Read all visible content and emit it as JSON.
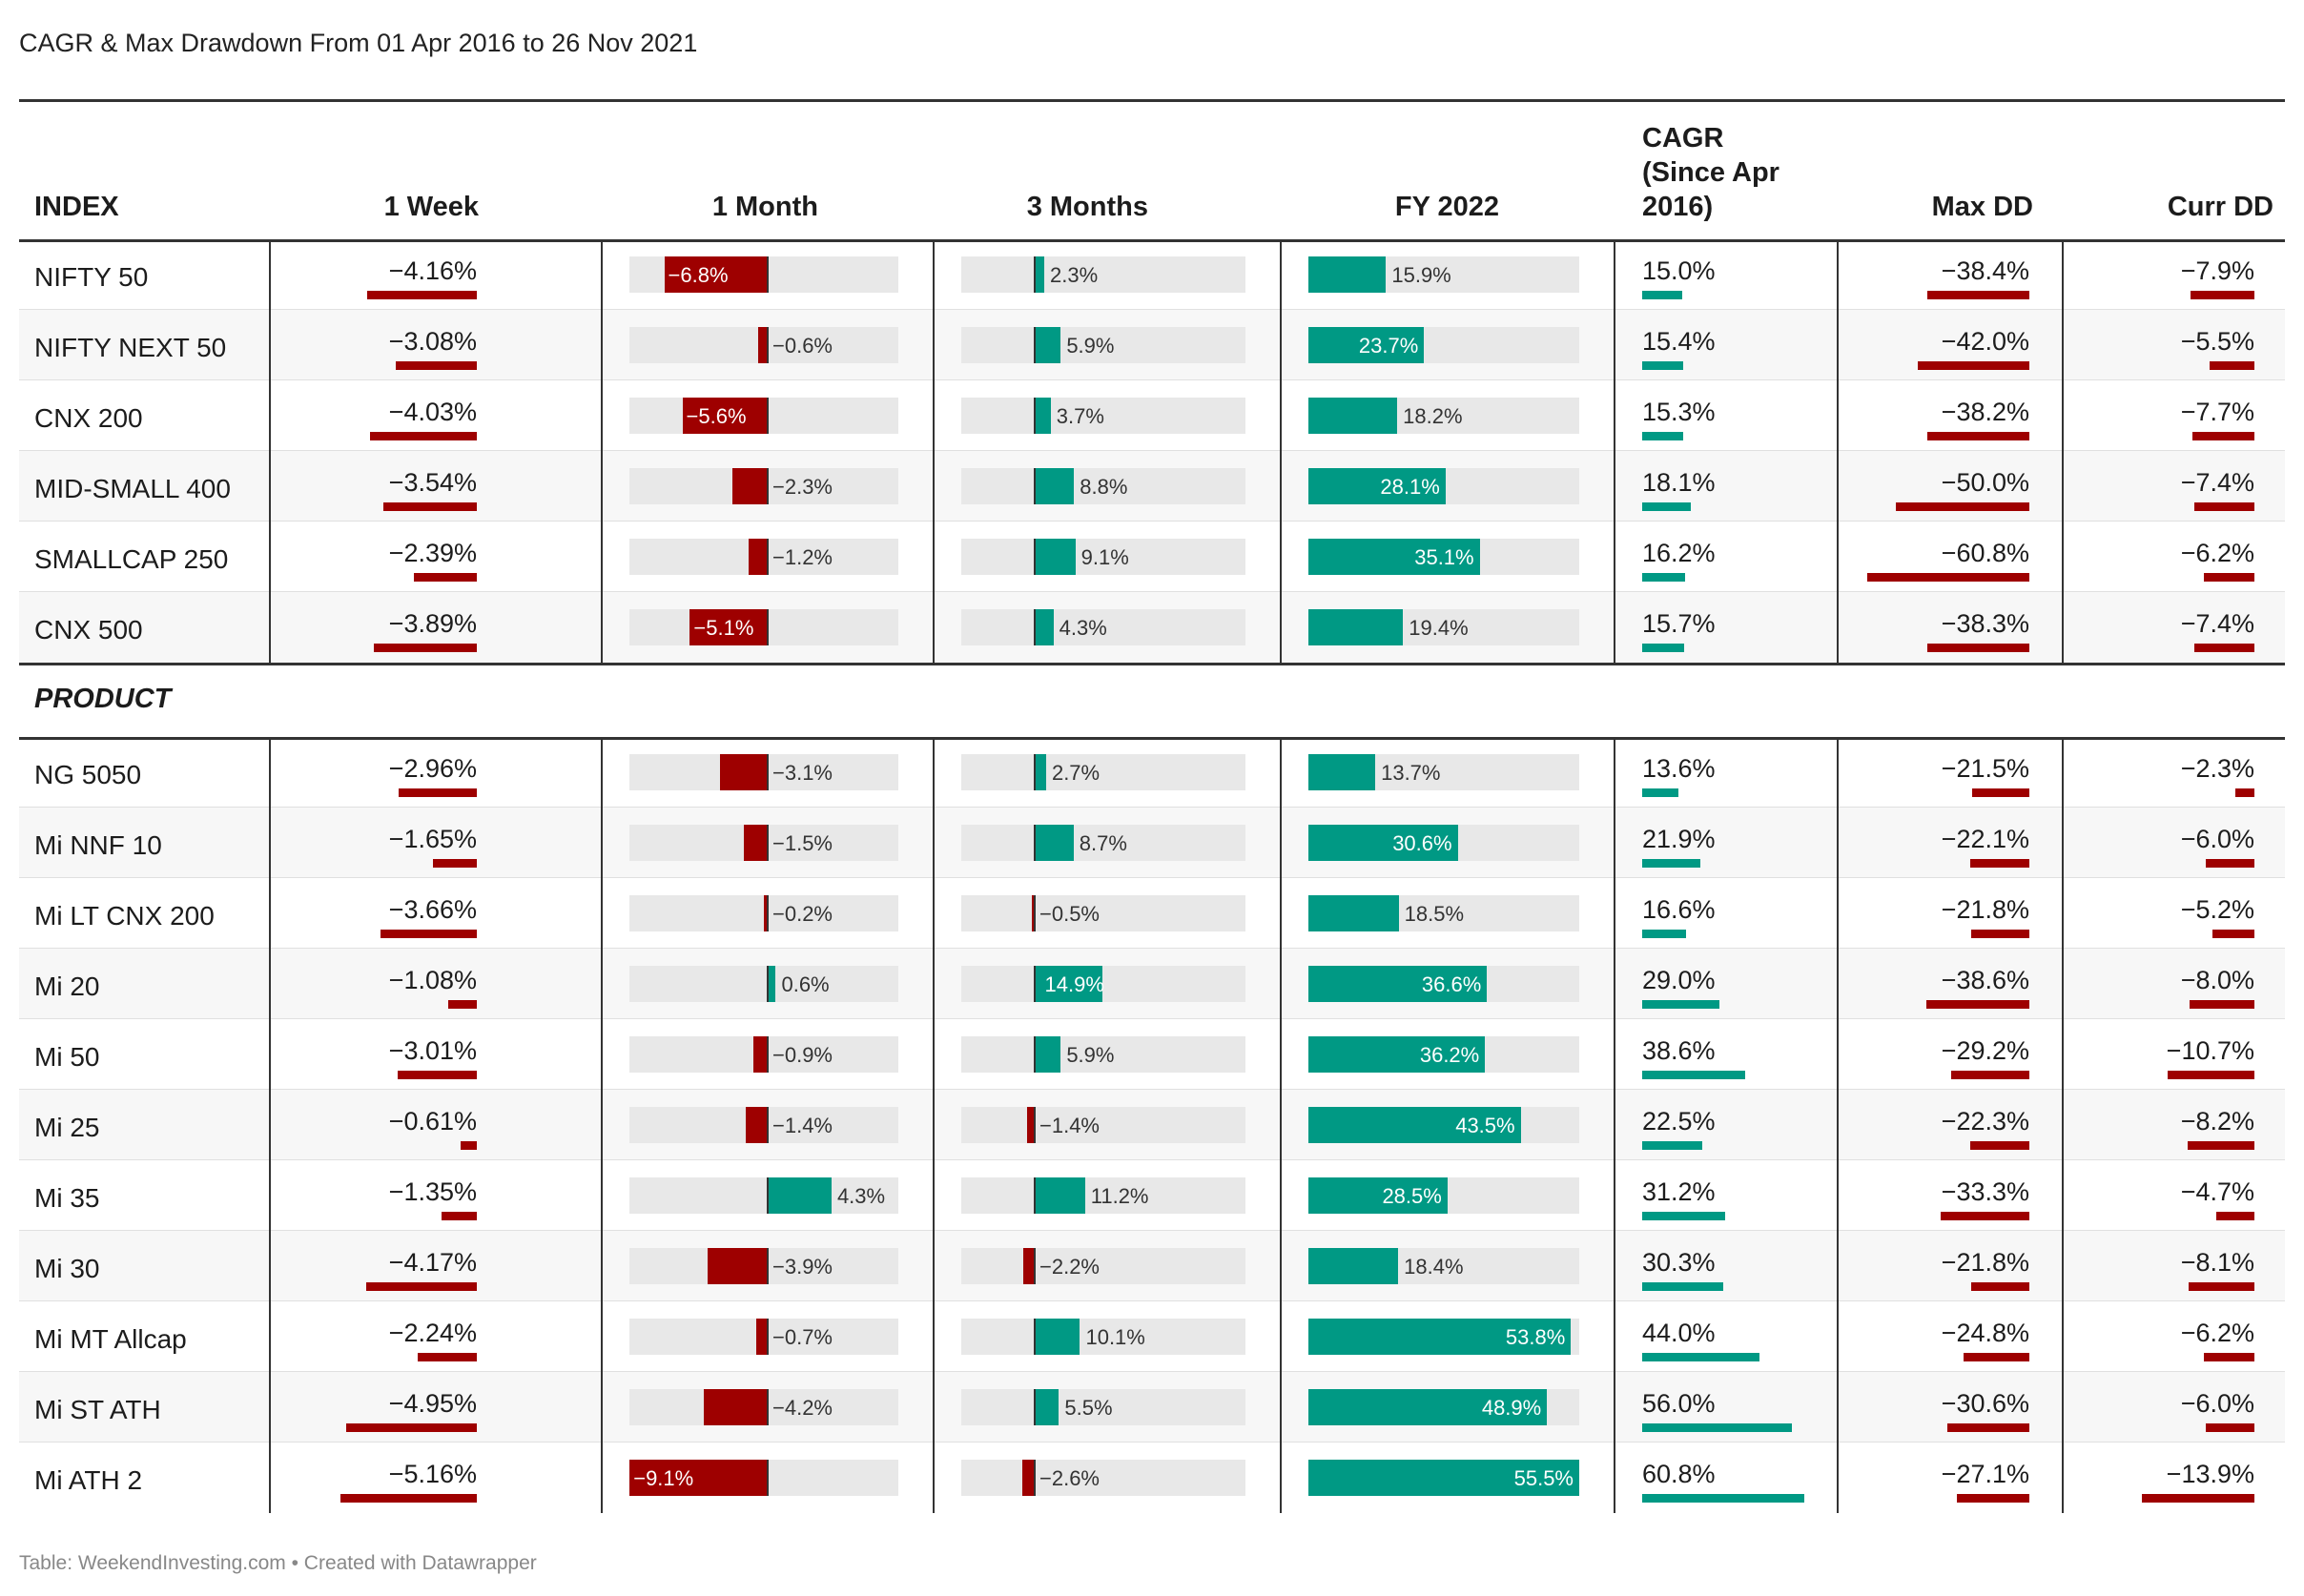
{
  "title": "CAGR & Max Drawdown From 01 Apr 2016 to 26 Nov 2021",
  "footer": "Table: WeekendInvesting.com • Created with Datawrapper",
  "colors": {
    "positive": "#009984",
    "negative": "#9e0000",
    "track": "#e8e8e8"
  },
  "chart_data": {
    "type": "table",
    "columns": [
      "INDEX",
      "1 Week",
      "1 Month",
      "3 Months",
      "FY 2022",
      "CAGR (Since Apr 2016)",
      "Max DD",
      "Curr DD"
    ],
    "sections": [
      {
        "label": "",
        "rows": [
          {
            "name": "NIFTY 50",
            "values": [
              -4.16,
              -6.8,
              2.3,
              15.9,
              15.0,
              -38.4,
              -7.9
            ],
            "labels": [
              "−4.16%",
              "−6.8%",
              "2.3%",
              "15.9%",
              "15.0%",
              "−38.4%",
              "−7.9%"
            ]
          },
          {
            "name": "NIFTY NEXT 50",
            "values": [
              -3.08,
              -0.6,
              5.9,
              23.7,
              15.4,
              -42.0,
              -5.5
            ],
            "labels": [
              "−3.08%",
              "−0.6%",
              "5.9%",
              "23.7%",
              "15.4%",
              "−42.0%",
              "−5.5%"
            ]
          },
          {
            "name": "CNX 200",
            "values": [
              -4.03,
              -5.6,
              3.7,
              18.2,
              15.3,
              -38.2,
              -7.7
            ],
            "labels": [
              "−4.03%",
              "−5.6%",
              "3.7%",
              "18.2%",
              "15.3%",
              "−38.2%",
              "−7.7%"
            ]
          },
          {
            "name": "MID-SMALL 400",
            "values": [
              -3.54,
              -2.3,
              8.8,
              28.1,
              18.1,
              -50.0,
              -7.4
            ],
            "labels": [
              "−3.54%",
              "−2.3%",
              "8.8%",
              "28.1%",
              "18.1%",
              "−50.0%",
              "−7.4%"
            ]
          },
          {
            "name": "SMALLCAP 250",
            "values": [
              -2.39,
              -1.2,
              9.1,
              35.1,
              16.2,
              -60.8,
              -6.2
            ],
            "labels": [
              "−2.39%",
              "−1.2%",
              "9.1%",
              "35.1%",
              "16.2%",
              "−60.8%",
              "−6.2%"
            ]
          },
          {
            "name": "CNX 500",
            "values": [
              -3.89,
              -5.1,
              4.3,
              19.4,
              15.7,
              -38.3,
              -7.4
            ],
            "labels": [
              "−3.89%",
              "−5.1%",
              "4.3%",
              "19.4%",
              "15.7%",
              "−38.3%",
              "−7.4%"
            ]
          }
        ]
      },
      {
        "label": "PRODUCT",
        "rows": [
          {
            "name": "NG 5050",
            "values": [
              -2.96,
              -3.1,
              2.7,
              13.7,
              13.6,
              -21.5,
              -2.3
            ],
            "labels": [
              "−2.96%",
              "−3.1%",
              "2.7%",
              "13.7%",
              "13.6%",
              "−21.5%",
              "−2.3%"
            ]
          },
          {
            "name": "Mi NNF 10",
            "values": [
              -1.65,
              -1.5,
              8.7,
              30.6,
              21.9,
              -22.1,
              -6.0
            ],
            "labels": [
              "−1.65%",
              "−1.5%",
              "8.7%",
              "30.6%",
              "21.9%",
              "−22.1%",
              "−6.0%"
            ]
          },
          {
            "name": "Mi LT CNX 200",
            "values": [
              -3.66,
              -0.2,
              -0.5,
              18.5,
              16.6,
              -21.8,
              -5.2
            ],
            "labels": [
              "−3.66%",
              "−0.2%",
              "−0.5%",
              "18.5%",
              "16.6%",
              "−21.8%",
              "−5.2%"
            ]
          },
          {
            "name": "Mi 20",
            "values": [
              -1.08,
              0.6,
              14.9,
              36.6,
              29.0,
              -38.6,
              -8.0
            ],
            "labels": [
              "−1.08%",
              "0.6%",
              "14.9%",
              "36.6%",
              "29.0%",
              "−38.6%",
              "−8.0%"
            ]
          },
          {
            "name": "Mi 50",
            "values": [
              -3.01,
              -0.9,
              5.9,
              36.2,
              38.6,
              -29.2,
              -10.7
            ],
            "labels": [
              "−3.01%",
              "−0.9%",
              "5.9%",
              "36.2%",
              "38.6%",
              "−29.2%",
              "−10.7%"
            ]
          },
          {
            "name": "Mi 25",
            "values": [
              -0.61,
              -1.4,
              -1.4,
              43.5,
              22.5,
              -22.3,
              -8.2
            ],
            "labels": [
              "−0.61%",
              "−1.4%",
              "−1.4%",
              "43.5%",
              "22.5%",
              "−22.3%",
              "−8.2%"
            ]
          },
          {
            "name": "Mi 35",
            "values": [
              -1.35,
              4.3,
              11.2,
              28.5,
              31.2,
              -33.3,
              -4.7
            ],
            "labels": [
              "−1.35%",
              "4.3%",
              "11.2%",
              "28.5%",
              "31.2%",
              "−33.3%",
              "−4.7%"
            ]
          },
          {
            "name": "Mi 30",
            "values": [
              -4.17,
              -3.9,
              -2.2,
              18.4,
              30.3,
              -21.8,
              -8.1
            ],
            "labels": [
              "−4.17%",
              "−3.9%",
              "−2.2%",
              "18.4%",
              "30.3%",
              "−21.8%",
              "−8.1%"
            ]
          },
          {
            "name": "Mi MT Allcap",
            "values": [
              -2.24,
              -0.7,
              10.1,
              53.8,
              44.0,
              -24.8,
              -6.2
            ],
            "labels": [
              "−2.24%",
              "−0.7%",
              "10.1%",
              "53.8%",
              "44.0%",
              "−24.8%",
              "−6.2%"
            ]
          },
          {
            "name": "Mi ST ATH",
            "values": [
              -4.95,
              -4.2,
              5.5,
              48.9,
              56.0,
              -30.6,
              -6.0
            ],
            "labels": [
              "−4.95%",
              "−4.2%",
              "5.5%",
              "48.9%",
              "56.0%",
              "−30.6%",
              "−6.0%"
            ]
          },
          {
            "name": "Mi ATH 2",
            "values": [
              -5.16,
              -9.1,
              -2.6,
              55.5,
              60.8,
              -27.1,
              -13.9
            ],
            "labels": [
              "−5.16%",
              "−9.1%",
              "−2.6%",
              "55.5%",
              "60.8%",
              "−27.1%",
              "−13.9%"
            ]
          }
        ]
      }
    ],
    "bar_scales": {
      "1 Month": [
        -9.1,
        4.3
      ],
      "3 Months": [
        -2.6,
        14.9
      ],
      "FY 2022": [
        0,
        55.5
      ]
    }
  }
}
